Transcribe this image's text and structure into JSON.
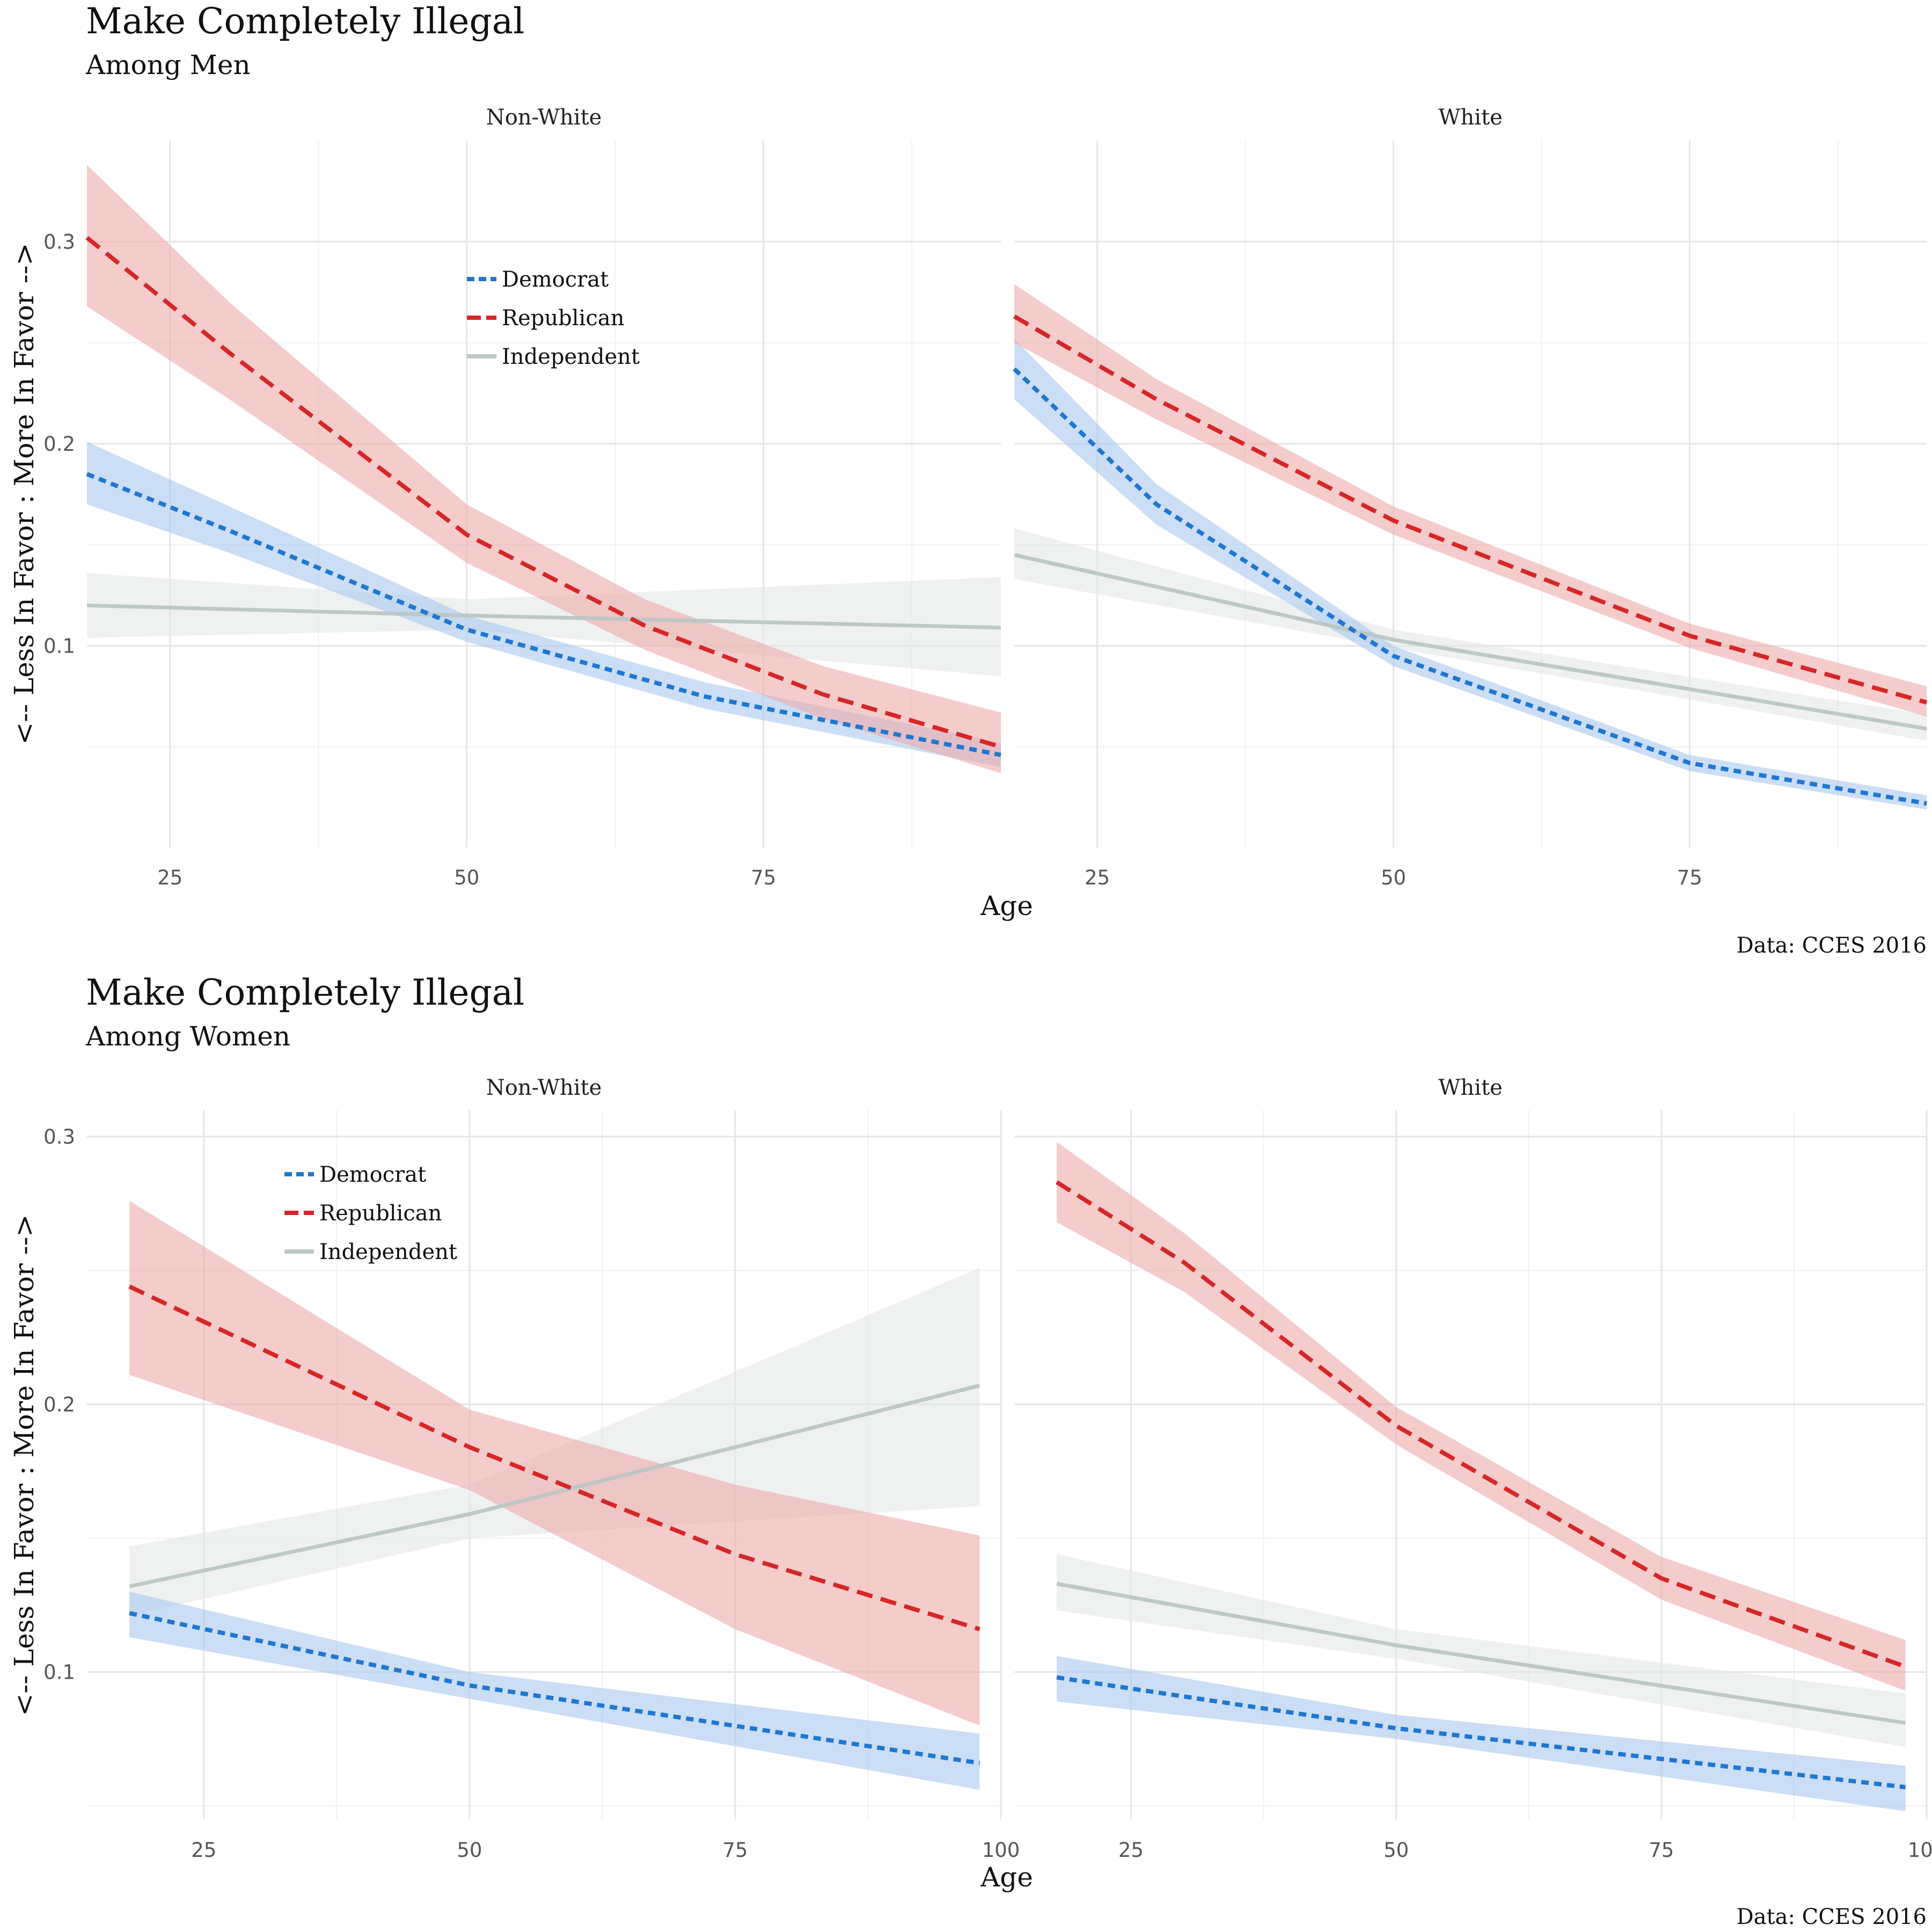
{
  "colors": {
    "Democrat": "#1f77d0",
    "Republican": "#d62728",
    "Independent": "#bcc8c6",
    "Democrat_band": "#a9c8ee",
    "Republican_band": "#eeaaaa",
    "Independent_band": "#e3e8e6",
    "grid": "#e6e6e6"
  },
  "chart_data": [
    {
      "type": "line",
      "title": "Make Completely Illegal",
      "subtitle": "Among Men",
      "xlabel": "Age",
      "ylabel": "<-- Less In Favor : More In Favor -->",
      "caption": "Data: CCES 2016",
      "legend_entries": [
        "Democrat",
        "Republican",
        "Independent"
      ],
      "legend_position": "inside top of left panel",
      "grid": true,
      "xlim": [
        18,
        95
      ],
      "ylim": [
        0.0,
        0.35
      ],
      "x_ticks": [
        25,
        50,
        75
      ],
      "y_ticks": [
        0.1,
        0.2,
        0.3
      ],
      "panels": [
        {
          "name": "Non-White",
          "show_y_ticks": true,
          "series": [
            {
              "name": "Democrat",
              "x": [
                18,
                30,
                50,
                70,
                95
              ],
              "y": [
                0.185,
                0.157,
                0.108,
                0.075,
                0.046
              ],
              "lower": [
                0.17,
                0.146,
                0.102,
                0.069,
                0.04
              ],
              "upper": [
                0.201,
                0.169,
                0.115,
                0.082,
                0.052
              ]
            },
            {
              "name": "Republican",
              "x": [
                18,
                30,
                50,
                65,
                80,
                95
              ],
              "y": [
                0.302,
                0.245,
                0.155,
                0.11,
                0.076,
                0.05
              ],
              "lower": [
                0.268,
                0.222,
                0.141,
                0.098,
                0.064,
                0.037
              ],
              "upper": [
                0.338,
                0.27,
                0.17,
                0.123,
                0.09,
                0.067
              ]
            },
            {
              "name": "Independent",
              "x": [
                18,
                50,
                95
              ],
              "y": [
                0.12,
                0.115,
                0.109
              ],
              "lower": [
                0.104,
                0.108,
                0.085
              ],
              "upper": [
                0.136,
                0.123,
                0.134
              ]
            }
          ]
        },
        {
          "name": "White",
          "show_y_ticks": false,
          "series": [
            {
              "name": "Democrat",
              "x": [
                18,
                30,
                50,
                75,
                95
              ],
              "y": [
                0.237,
                0.17,
                0.095,
                0.042,
                0.022
              ],
              "lower": [
                0.222,
                0.16,
                0.09,
                0.038,
                0.019
              ],
              "upper": [
                0.252,
                0.18,
                0.1,
                0.046,
                0.026
              ]
            },
            {
              "name": "Republican",
              "x": [
                18,
                30,
                50,
                75,
                95
              ],
              "y": [
                0.263,
                0.222,
                0.162,
                0.105,
                0.072
              ],
              "lower": [
                0.25,
                0.212,
                0.155,
                0.099,
                0.065
              ],
              "upper": [
                0.279,
                0.232,
                0.169,
                0.111,
                0.08
              ]
            },
            {
              "name": "Independent",
              "x": [
                18,
                50,
                95
              ],
              "y": [
                0.145,
                0.103,
                0.059
              ],
              "lower": [
                0.133,
                0.099,
                0.053
              ],
              "upper": [
                0.158,
                0.108,
                0.066
              ]
            }
          ]
        }
      ]
    },
    {
      "type": "line",
      "title": "Make Completely Illegal",
      "subtitle": "Among Women",
      "xlabel": "Age",
      "ylabel": "<-- Less In Favor : More In Favor -->",
      "caption": "Data: CCES 2016",
      "legend_entries": [
        "Democrat",
        "Republican",
        "Independent"
      ],
      "legend_position": "inside top of left panel",
      "grid": true,
      "xlim": [
        14,
        100
      ],
      "ylim": [
        0.045,
        0.31
      ],
      "x_ticks": [
        25,
        50,
        75,
        100
      ],
      "y_ticks": [
        0.1,
        0.2,
        0.3
      ],
      "panels": [
        {
          "name": "Non-White",
          "show_y_ticks": true,
          "series": [
            {
              "name": "Democrat",
              "x": [
                18,
                50,
                98
              ],
              "y": [
                0.122,
                0.095,
                0.066
              ],
              "lower": [
                0.113,
                0.09,
                0.056
              ],
              "upper": [
                0.13,
                0.1,
                0.077
              ]
            },
            {
              "name": "Republican",
              "x": [
                18,
                50,
                75,
                98
              ],
              "y": [
                0.244,
                0.184,
                0.144,
                0.116
              ],
              "lower": [
                0.211,
                0.168,
                0.116,
                0.08
              ],
              "upper": [
                0.276,
                0.198,
                0.17,
                0.151
              ]
            },
            {
              "name": "Independent",
              "x": [
                18,
                50,
                98
              ],
              "y": [
                0.132,
                0.159,
                0.207
              ],
              "lower": [
                0.121,
                0.15,
                0.162
              ],
              "upper": [
                0.147,
                0.17,
                0.251
              ]
            }
          ]
        },
        {
          "name": "White",
          "show_y_ticks": false,
          "series": [
            {
              "name": "Democrat",
              "x": [
                18,
                50,
                98
              ],
              "y": [
                0.098,
                0.079,
                0.057
              ],
              "lower": [
                0.089,
                0.075,
                0.048
              ],
              "upper": [
                0.106,
                0.084,
                0.065
              ]
            },
            {
              "name": "Republican",
              "x": [
                18,
                30,
                50,
                75,
                98
              ],
              "y": [
                0.283,
                0.253,
                0.192,
                0.135,
                0.102
              ],
              "lower": [
                0.268,
                0.242,
                0.185,
                0.127,
                0.093
              ],
              "upper": [
                0.298,
                0.264,
                0.199,
                0.143,
                0.112
              ]
            },
            {
              "name": "Independent",
              "x": [
                18,
                50,
                98
              ],
              "y": [
                0.133,
                0.11,
                0.081
              ],
              "lower": [
                0.123,
                0.105,
                0.072
              ],
              "upper": [
                0.144,
                0.116,
                0.092
              ]
            }
          ]
        }
      ]
    }
  ]
}
